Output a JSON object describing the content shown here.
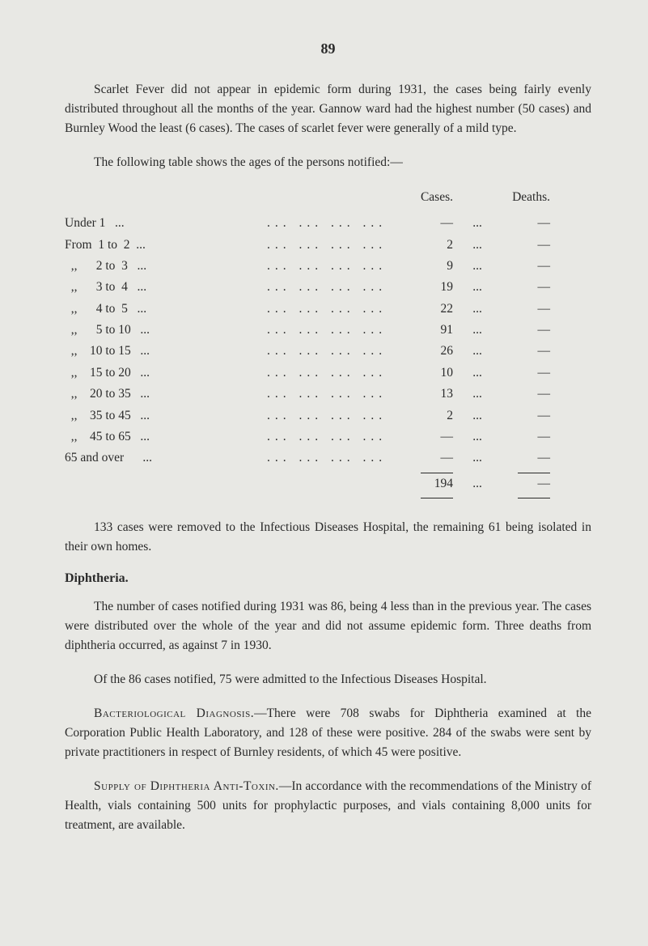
{
  "page_number": "89",
  "intro": {
    "p1": "Scarlet Fever did not appear in epidemic form during 1931, the cases being fairly evenly distributed throughout all the months of the year. Gannow ward had the highest number (50 cases) and Burnley Wood the least (6 cases). The cases of scarlet fever were generally of a mild type.",
    "p2": "The following table shows the ages of the persons notified:—"
  },
  "table": {
    "header_cases": "Cases.",
    "header_deaths": "Deaths.",
    "rows": [
      {
        "label": "Under 1   ...",
        "cases": "—",
        "deaths": "—"
      },
      {
        "label": "From  1 to  2  ...",
        "cases": "2",
        "deaths": "—"
      },
      {
        "label": "  ,,      2 to  3   ...",
        "cases": "9",
        "deaths": "—"
      },
      {
        "label": "  ,,      3 to  4   ...",
        "cases": "19",
        "deaths": "—"
      },
      {
        "label": "  ,,      4 to  5   ...",
        "cases": "22",
        "deaths": "—"
      },
      {
        "label": "  ,,      5 to 10   ...",
        "cases": "91",
        "deaths": "—"
      },
      {
        "label": "  ,,    10 to 15   ...",
        "cases": "26",
        "deaths": "—"
      },
      {
        "label": "  ,,    15 to 20   ...",
        "cases": "10",
        "deaths": "—"
      },
      {
        "label": "  ,,    20 to 35   ...",
        "cases": "13",
        "deaths": "—"
      },
      {
        "label": "  ,,    35 to 45   ...",
        "cases": "2",
        "deaths": "—"
      },
      {
        "label": "  ,,    45 to 65   ...",
        "cases": "—",
        "deaths": "—"
      },
      {
        "label": "65 and over      ...",
        "cases": "—",
        "deaths": "—"
      }
    ],
    "total": "194",
    "total_deaths": "—"
  },
  "after_table": {
    "p1": "133 cases were removed to the Infectious Diseases Hospital, the remaining 61 being isolated in their own homes."
  },
  "diphtheria": {
    "heading": "Diphtheria.",
    "p1": "The number of cases notified during 1931 was 86, being 4 less than in the previous year. The cases were distributed over the whole of the year and did not assume epidemic form. Three deaths from diphtheria occurred, as against 7 in 1930.",
    "p2": "Of the 86 cases notified, 75 were admitted to the Infectious Diseases Hospital.",
    "p3_prefix": "Bacteriological Diagnosis.",
    "p3_rest": "—There were 708 swabs for Diphtheria examined at the Corporation Public Health Laboratory, and 128 of these were positive. 284 of the swabs were sent by private practitioners in respect of Burnley residents, of which 45 were positive.",
    "p4_prefix": "Supply of Diphtheria Anti-Toxin.",
    "p4_rest": "—In accordance with the recommendations of the Ministry of Health, vials containing 500 units for prophylactic purposes, and vials containing 8,000 units for treatment, are available."
  }
}
